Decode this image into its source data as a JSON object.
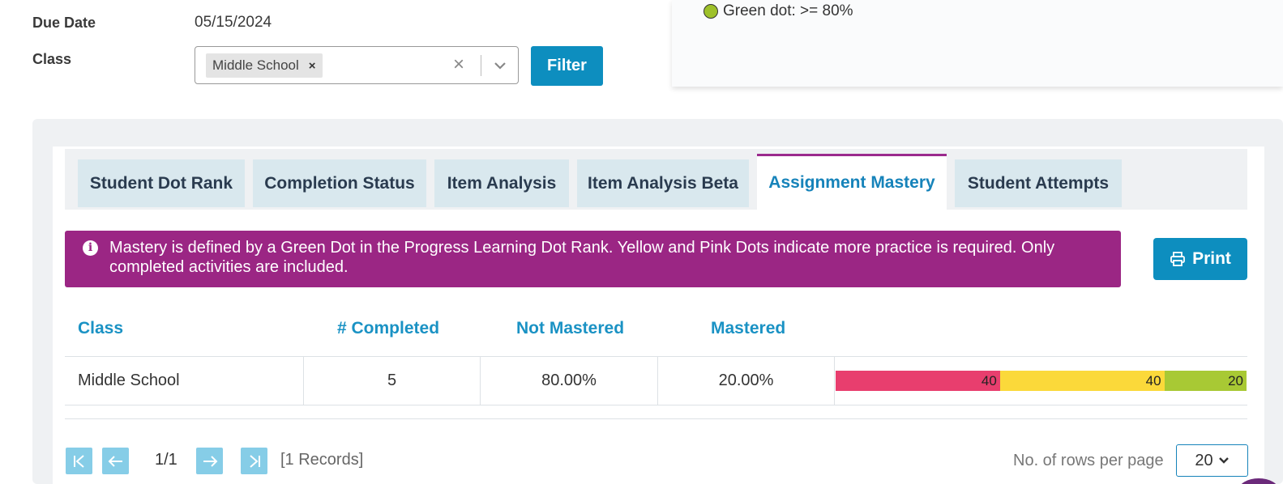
{
  "filters": {
    "due_date_label": "Due Date",
    "due_date_value": "05/15/2024",
    "class_label": "Class",
    "class_chip": "Middle School",
    "chip_remove": "×",
    "clear": "×",
    "filter_button": "Filter"
  },
  "legend": {
    "green_dot_text": "Green dot: >= 80%",
    "green_color": "#9ec12a"
  },
  "tabs": [
    {
      "label": "Student Dot Rank"
    },
    {
      "label": "Completion Status"
    },
    {
      "label": "Item Analysis"
    },
    {
      "label": "Item Analysis Beta"
    },
    {
      "label": "Assignment Mastery",
      "active": true
    },
    {
      "label": "Student Attempts"
    }
  ],
  "banner": {
    "icon": "info-icon",
    "text": "Mastery is defined by a Green Dot in the Progress Learning Dot Rank. Yellow and Pink Dots indicate more practice is required. Only completed activities are included."
  },
  "print_button": "Print",
  "table": {
    "headers": {
      "class": "Class",
      "completed": "# Completed",
      "not_mastered": "Not Mastered",
      "mastered": "Mastered"
    },
    "rows": [
      {
        "class": "Middle School",
        "completed": "5",
        "not_mastered": "80.00%",
        "mastered": "20.00%",
        "bar": [
          {
            "label": "40",
            "value": 40,
            "color": "#e83e6e"
          },
          {
            "label": "40",
            "value": 40,
            "color": "#fbd93a"
          },
          {
            "label": "20",
            "value": 20,
            "color": "#a8c934"
          }
        ]
      }
    ]
  },
  "pagination": {
    "page": "1/1",
    "records": "[1 Records]",
    "rows_label": "No. of rows per page",
    "rows_value": "20"
  },
  "colors": {
    "accent": "#0d8ebf",
    "banner": "#9b2684",
    "tab_active_border": "#9b2a8d"
  }
}
